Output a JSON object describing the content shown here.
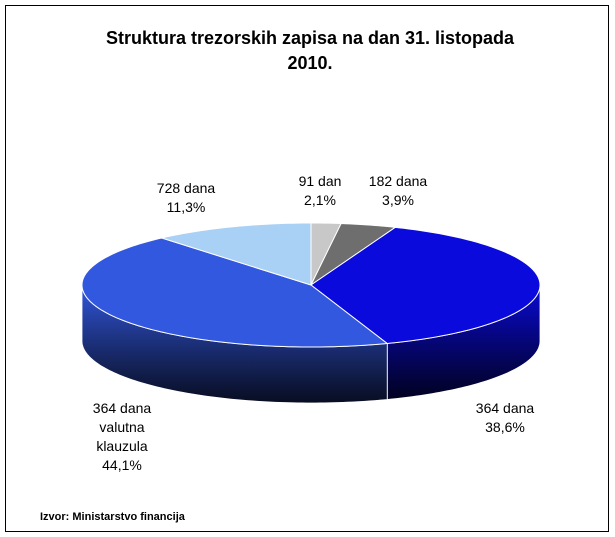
{
  "chart_data": {
    "type": "pie",
    "title": "Struktura trezorskih zapisa na dan 31. listopada 2010.",
    "categories": [
      "91 dan",
      "182 dana",
      "364 dana",
      "364 dana valutna klauzula",
      "728 dana"
    ],
    "values": [
      2.1,
      3.9,
      38.6,
      44.1,
      11.3
    ],
    "value_labels": [
      "2,1%",
      "3,9%",
      "38,6%",
      "44,1%",
      "11,3%"
    ],
    "colors": [
      "#c8c8c8",
      "#6e6e6e",
      "#0a0adc",
      "#3358e0",
      "#a9d0f5"
    ],
    "source": "Izvor: Ministarstvo financija"
  }
}
